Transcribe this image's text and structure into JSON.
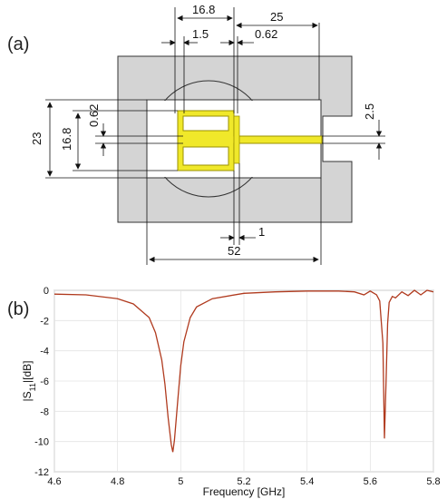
{
  "panel_a": {
    "label": "(a)",
    "dimensions": {
      "top_width": "16.8",
      "right_length": "25",
      "slot_width": "1.5",
      "gap_top": "0.62",
      "height_total": "23",
      "inner_height": "16.8",
      "gap_left": "0.62",
      "feed_width": "2.5",
      "bottom_small": "1",
      "bottom_length": "52"
    },
    "colors": {
      "substrate": "#d4d4d4",
      "patch": "#f0e82a",
      "patch_outline": "#9a9000",
      "outline": "#333333"
    }
  },
  "panel_b": {
    "label": "(b)"
  },
  "chart_data": {
    "type": "line",
    "title": "",
    "xlabel": "Frequency [GHz]",
    "ylabel": "|S11|[dB]",
    "xlim": [
      4.6,
      5.8
    ],
    "ylim": [
      -12,
      0
    ],
    "xticks": [
      "4.6",
      "4.8",
      "5",
      "5.2",
      "5.4",
      "5.6",
      "5.8"
    ],
    "yticks": [
      "0",
      "-2",
      "-4",
      "-6",
      "-8",
      "-10",
      "-12"
    ],
    "grid": true,
    "line_color": "#b03a1e",
    "series": [
      {
        "x": [
          4.6,
          4.7,
          4.8,
          4.85,
          4.9,
          4.92,
          4.94,
          4.95,
          4.96,
          4.97,
          4.975,
          4.98,
          4.99,
          5.0,
          5.01,
          5.03,
          5.05,
          5.1,
          5.2,
          5.3,
          5.4,
          5.5,
          5.55,
          5.58,
          5.6,
          5.62,
          5.63,
          5.64,
          5.645,
          5.65,
          5.655,
          5.66,
          5.67,
          5.68,
          5.7,
          5.72,
          5.74,
          5.76,
          5.78,
          5.8
        ],
        "values": [
          -0.25,
          -0.3,
          -0.55,
          -0.9,
          -1.8,
          -2.8,
          -4.6,
          -6.2,
          -8.4,
          -10.2,
          -10.7,
          -9.9,
          -7.4,
          -5.0,
          -3.4,
          -1.8,
          -1.1,
          -0.55,
          -0.2,
          -0.1,
          -0.05,
          -0.05,
          -0.1,
          -0.3,
          -0.05,
          -0.3,
          -0.7,
          -3.5,
          -9.8,
          -6.0,
          -2.2,
          -0.8,
          -0.4,
          -0.5,
          -0.1,
          -0.35,
          0.0,
          -0.3,
          0.0,
          -0.1
        ]
      }
    ]
  }
}
